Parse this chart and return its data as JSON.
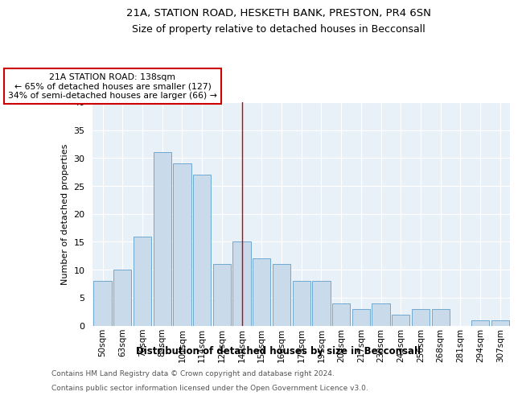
{
  "title1": "21A, STATION ROAD, HESKETH BANK, PRESTON, PR4 6SN",
  "title2": "Size of property relative to detached houses in Becconsall",
  "xlabel": "Distribution of detached houses by size in Becconsall",
  "ylabel": "Number of detached properties",
  "categories": [
    "50sqm",
    "63sqm",
    "76sqm",
    "89sqm",
    "101sqm",
    "114sqm",
    "127sqm",
    "140sqm",
    "153sqm",
    "166sqm",
    "179sqm",
    "191sqm",
    "204sqm",
    "217sqm",
    "230sqm",
    "243sqm",
    "256sqm",
    "268sqm",
    "281sqm",
    "294sqm",
    "307sqm"
  ],
  "values": [
    8,
    10,
    16,
    31,
    29,
    27,
    11,
    15,
    12,
    11,
    8,
    8,
    4,
    3,
    4,
    2,
    3,
    3,
    0,
    1,
    1
  ],
  "bar_color": "#c9daea",
  "bar_edge_color": "#6fa8d0",
  "highlight_index": 7,
  "highlight_color_line": "#cc0000",
  "annotation_text": "21A STATION ROAD: 138sqm\n← 65% of detached houses are smaller (127)\n34% of semi-detached houses are larger (66) →",
  "annotation_box_color": "#ffffff",
  "annotation_box_edge_color": "#cc0000",
  "ylim": [
    0,
    40
  ],
  "yticks": [
    0,
    5,
    10,
    15,
    20,
    25,
    30,
    35,
    40
  ],
  "background_color": "#e8f0f8",
  "footer1": "Contains HM Land Registry data © Crown copyright and database right 2024.",
  "footer2": "Contains public sector information licensed under the Open Government Licence v3.0."
}
